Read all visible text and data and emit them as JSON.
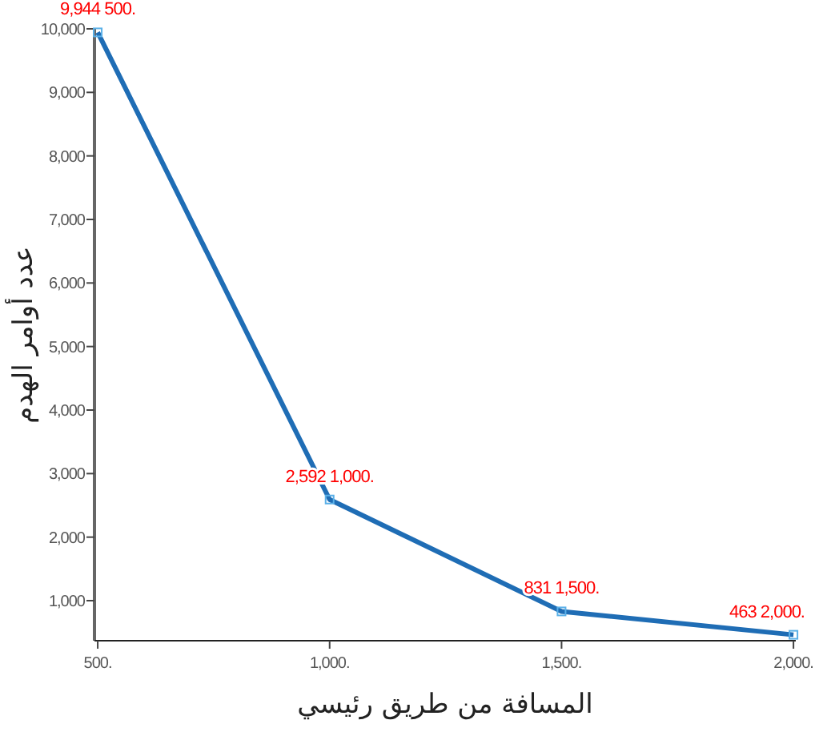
{
  "chart_data": {
    "type": "line",
    "xlabel": "المسافة من طريق رئيسي",
    "ylabel": "عدد أوامر الهدم",
    "x": [
      500,
      1000,
      1500,
      2000
    ],
    "series": [
      {
        "color": "#1f6db5",
        "values": [
          9944,
          2592,
          831,
          463
        ],
        "value_labels": [
          "9,944 500.",
          "2,592 1,000.",
          "831 1,500.",
          "463 2,000."
        ]
      }
    ],
    "xlim": [
      493,
      2005
    ],
    "ylim": [
      370,
      10000
    ],
    "xticks": [
      {
        "value": 500,
        "label": "500."
      },
      {
        "value": 1000,
        "label": "1,000."
      },
      {
        "value": 1500,
        "label": "1,500."
      },
      {
        "value": 2000,
        "label": "2,000."
      }
    ],
    "yticks": [
      {
        "value": 1000,
        "label": "1,000"
      },
      {
        "value": 2000,
        "label": "2,000"
      },
      {
        "value": 3000,
        "label": "3,000"
      },
      {
        "value": 4000,
        "label": "4,000"
      },
      {
        "value": 5000,
        "label": "5,000"
      },
      {
        "value": 6000,
        "label": "6,000"
      },
      {
        "value": 7000,
        "label": "7,000"
      },
      {
        "value": 8000,
        "label": "8,000"
      },
      {
        "value": 9000,
        "label": "9,000"
      },
      {
        "value": 10000,
        "label": "10,000"
      }
    ],
    "grid": false,
    "marker": "square",
    "line_style": "solid"
  }
}
